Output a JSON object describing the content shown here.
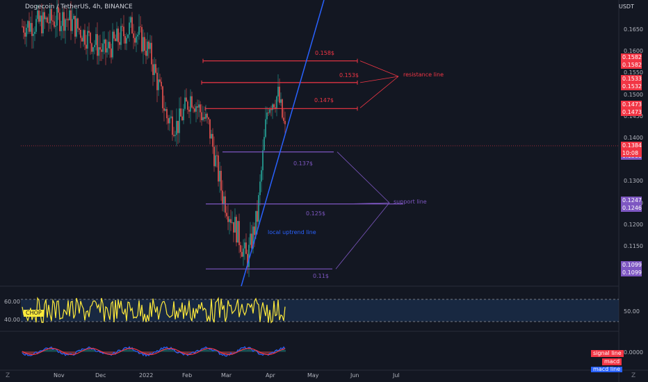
{
  "header": {
    "title": "Dogecoin / TetherUS, 4h, BINANCE",
    "currency": "USDT"
  },
  "chart_data": {
    "type": "candlestick",
    "symbol": "Dogecoin / TetherUS",
    "interval": "4h",
    "exchange": "BINANCE",
    "x_ticks": [
      "Nov",
      "Dec",
      "2022",
      "Feb",
      "Mar",
      "Apr",
      "May",
      "Jun",
      "Jul"
    ],
    "y_ticks": [
      "0.1650",
      "0.1600",
      "0.1550",
      "0.1500",
      "0.1450",
      "0.1400",
      "0.1300",
      "0.1250",
      "0.1200",
      "0.1150"
    ],
    "ylim": [
      0.1065,
      0.1685
    ],
    "current_price": {
      "value": "0.1384",
      "countdown": "10:08"
    },
    "resistance_levels": [
      {
        "value": 0.158,
        "label": "0.158$",
        "badges": [
          "0.1582",
          "0.1582"
        ]
      },
      {
        "value": 0.153,
        "label": "0.153$",
        "badges": [
          "0.1533",
          "0.1532"
        ]
      },
      {
        "value": 0.147,
        "label": "0.147$",
        "badges": [
          "0.1473",
          "0.1473"
        ]
      }
    ],
    "support_levels": [
      {
        "value": 0.137,
        "label": "0.137$",
        "badges": [
          "0.1368",
          "0.1368"
        ]
      },
      {
        "value": 0.125,
        "label": "0.125$",
        "badges": [
          "0.1247",
          "0.1246"
        ]
      },
      {
        "value": 0.11,
        "label": "0.11$",
        "badges": [
          "0.1099",
          "0.1099"
        ]
      }
    ],
    "annotations": {
      "resistance": "resistance line",
      "support": "support line",
      "uptrend": "local uptrend line"
    },
    "indicators": {
      "chop": {
        "name": "CHOP",
        "levels": [
          "60.00",
          "40.00"
        ],
        "value": "50.00"
      },
      "macd": {
        "value": "0.0000",
        "labels": [
          "signal line",
          "macd",
          "macd line"
        ]
      }
    }
  },
  "colors": {
    "background": "#131722",
    "resistance": "#f23645",
    "support": "#7e57c2",
    "trend": "#2962ff",
    "chop": "#ffeb3b",
    "price": "#f23645"
  },
  "corner_labels": {
    "left": "Z",
    "right": "Z"
  }
}
